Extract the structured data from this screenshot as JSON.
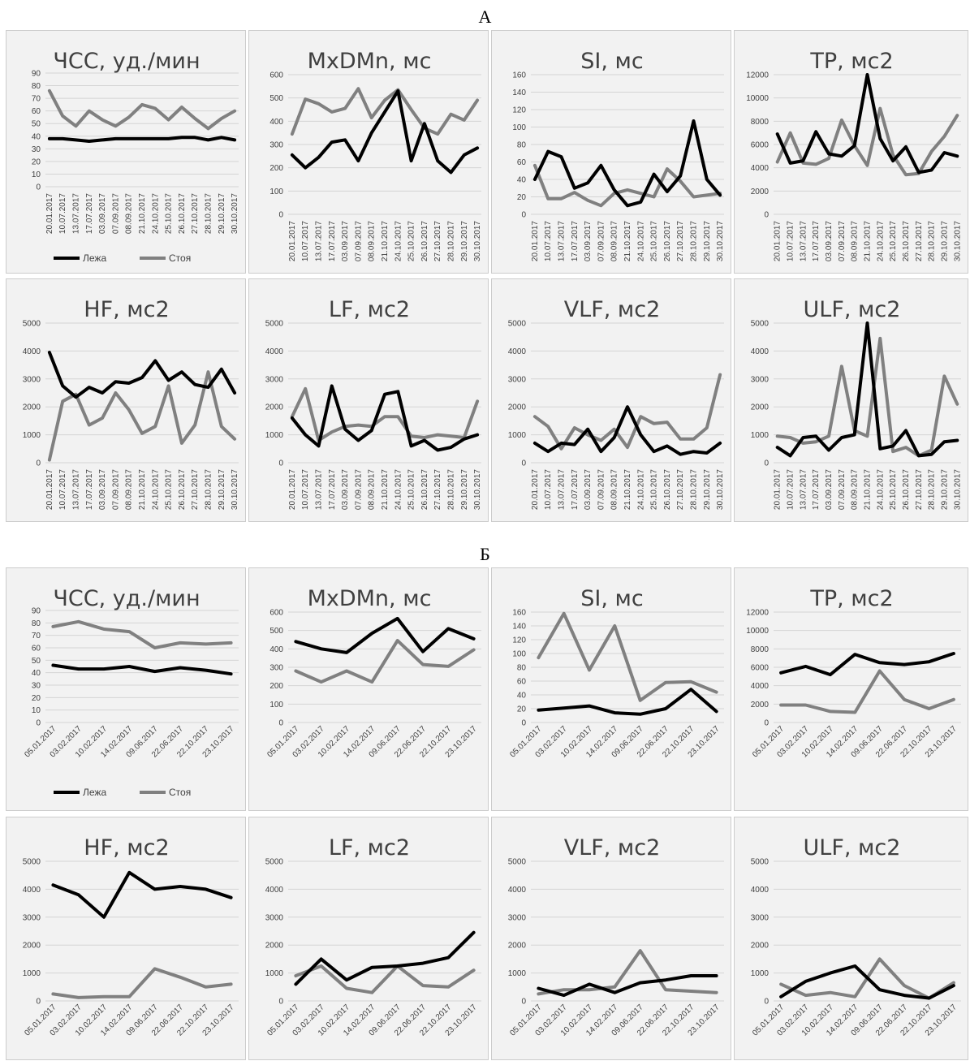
{
  "figure": {
    "label_a": "А",
    "label_b": "Б"
  },
  "legend": {
    "lying": "Лежа",
    "standing": "Стоя"
  },
  "colors": {
    "lying": "#000000",
    "standing": "#808080",
    "grid": "#d4d4d4",
    "panel_bg": "#f2f2f2"
  },
  "chart_data": [
    {
      "group": "А",
      "type": "line",
      "title": "ЧСС, уд./мин",
      "ylim": [
        0,
        90
      ],
      "yticks": [
        0,
        10,
        20,
        30,
        40,
        50,
        60,
        70,
        80,
        90
      ],
      "legend": true,
      "categories": [
        "20.01.2017",
        "10.07.2017",
        "13.07.2017",
        "17.07.2017",
        "03.09.2017",
        "07.09.2017",
        "08.09.2017",
        "21.10.2017",
        "24.10.2017",
        "25.10.2017",
        "26.10.2017",
        "27.10.2017",
        "28.10.2017",
        "29.10.2017",
        "30.10.2017"
      ],
      "series": [
        {
          "name": "Лежа",
          "values": [
            38,
            38,
            37,
            36,
            37,
            38,
            38,
            38,
            38,
            38,
            39,
            39,
            37,
            39,
            37
          ]
        },
        {
          "name": "Стоя",
          "values": [
            76,
            56,
            48,
            60,
            53,
            48,
            55,
            65,
            62,
            53,
            63,
            54,
            46,
            54,
            60
          ]
        }
      ]
    },
    {
      "group": "А",
      "type": "line",
      "title": "MxDMn, мс",
      "ylim": [
        0,
        600
      ],
      "yticks": [
        0,
        100,
        200,
        300,
        400,
        500,
        600
      ],
      "categories": [
        "20.01.2017",
        "10.07.2017",
        "13.07.2017",
        "17.07.2017",
        "03.09.2017",
        "07.09.2017",
        "08.09.2017",
        "21.10.2017",
        "24.10.2017",
        "25.10.2017",
        "26.10.2017",
        "27.10.2017",
        "28.10.2017",
        "29.10.2017",
        "30.10.2017"
      ],
      "series": [
        {
          "name": "Лежа",
          "values": [
            255,
            200,
            245,
            310,
            320,
            230,
            350,
            440,
            530,
            230,
            390,
            230,
            180,
            255,
            285
          ]
        },
        {
          "name": "Стоя",
          "values": [
            345,
            495,
            475,
            440,
            455,
            540,
            415,
            490,
            535,
            450,
            370,
            345,
            430,
            405,
            490
          ]
        }
      ]
    },
    {
      "group": "А",
      "type": "line",
      "title": "SI, мс",
      "ylim": [
        0,
        160
      ],
      "yticks": [
        0,
        20,
        40,
        60,
        80,
        100,
        120,
        140,
        160
      ],
      "categories": [
        "20.01.2017",
        "10.07.2017",
        "13.07.2017",
        "17.07.2017",
        "03.09.2017",
        "07.09.2017",
        "08.09.2017",
        "21.10.2017",
        "24.10.2017",
        "25.10.2017",
        "26.10.2017",
        "27.10.2017",
        "28.10.2017",
        "29.10.2017",
        "30.10.2017"
      ],
      "series": [
        {
          "name": "Лежа",
          "values": [
            40,
            72,
            66,
            30,
            36,
            56,
            28,
            10,
            14,
            46,
            26,
            44,
            107,
            40,
            22
          ]
        },
        {
          "name": "Стоя",
          "values": [
            56,
            18,
            18,
            25,
            16,
            10,
            24,
            28,
            24,
            20,
            52,
            38,
            20,
            22,
            24
          ]
        }
      ]
    },
    {
      "group": "А",
      "type": "line",
      "title": "TP, мс2",
      "ylim": [
        0,
        12000
      ],
      "yticks": [
        0,
        2000,
        4000,
        6000,
        8000,
        10000,
        12000
      ],
      "categories": [
        "20.01.2017",
        "10.07.2017",
        "13.07.2017",
        "17.07.2017",
        "03.09.2017",
        "07.09.2017",
        "08.09.2017",
        "21.10.2017",
        "24.10.2017",
        "25.10.2017",
        "26.10.2017",
        "27.10.2017",
        "28.10.2017",
        "29.10.2017",
        "30.10.2017"
      ],
      "series": [
        {
          "name": "Лежа",
          "values": [
            6900,
            4400,
            4600,
            7100,
            5200,
            5000,
            5900,
            12000,
            6500,
            4600,
            5800,
            3600,
            3800,
            5300,
            5000
          ]
        },
        {
          "name": "Стоя",
          "values": [
            4500,
            7000,
            4400,
            4300,
            4800,
            8100,
            5900,
            4200,
            9100,
            5100,
            3400,
            3500,
            5400,
            6700,
            8500
          ]
        }
      ]
    },
    {
      "group": "А",
      "type": "line",
      "title": "HF, мс2",
      "ylim": [
        0,
        5000
      ],
      "yticks": [
        0,
        1000,
        2000,
        3000,
        4000,
        5000
      ],
      "categories": [
        "20.01.2017",
        "10.07.2017",
        "13.07.2017",
        "17.07.2017",
        "03.09.2017",
        "07.09.2017",
        "08.09.2017",
        "21.10.2017",
        "24.10.2017",
        "25.10.2017",
        "26.10.2017",
        "27.10.2017",
        "28.10.2017",
        "29.10.2017",
        "30.10.2017"
      ],
      "series": [
        {
          "name": "Лежа",
          "values": [
            3950,
            2750,
            2350,
            2700,
            2500,
            2900,
            2850,
            3050,
            3650,
            2950,
            3250,
            2800,
            2700,
            3350,
            2500
          ]
        },
        {
          "name": "Стоя",
          "values": [
            100,
            2200,
            2450,
            1350,
            1600,
            2500,
            1900,
            1050,
            1300,
            2750,
            700,
            1350,
            3250,
            1300,
            850
          ]
        }
      ]
    },
    {
      "group": "А",
      "type": "line",
      "title": "LF, мс2",
      "ylim": [
        0,
        5000
      ],
      "yticks": [
        0,
        1000,
        2000,
        3000,
        4000,
        5000
      ],
      "categories": [
        "20.01.2017",
        "10.07.2017",
        "13.07.2017",
        "17.07.2017",
        "03.09.2017",
        "07.09.2017",
        "08.09.2017",
        "21.10.2017",
        "24.10.2017",
        "25.10.2017",
        "26.10.2017",
        "27.10.2017",
        "28.10.2017",
        "29.10.2017",
        "30.10.2017"
      ],
      "series": [
        {
          "name": "Лежа",
          "values": [
            1600,
            1000,
            600,
            2750,
            1200,
            800,
            1150,
            2450,
            2550,
            600,
            800,
            450,
            550,
            850,
            1000
          ]
        },
        {
          "name": "Стоя",
          "values": [
            1650,
            2650,
            800,
            1100,
            1300,
            1350,
            1300,
            1650,
            1650,
            950,
            900,
            1000,
            950,
            900,
            2200
          ]
        }
      ]
    },
    {
      "group": "А",
      "type": "line",
      "title": "VLF, мс2",
      "ylim": [
        0,
        5000
      ],
      "yticks": [
        0,
        1000,
        2000,
        3000,
        4000,
        5000
      ],
      "categories": [
        "20.01.2017",
        "10.07.2017",
        "13.07.2017",
        "17.07.2017",
        "03.09.2017",
        "07.09.2017",
        "08.09.2017",
        "21.10.2017",
        "24.10.2017",
        "25.10.2017",
        "26.10.2017",
        "27.10.2017",
        "28.10.2017",
        "29.10.2017",
        "30.10.2017"
      ],
      "series": [
        {
          "name": "Лежа",
          "values": [
            700,
            400,
            700,
            650,
            1200,
            400,
            900,
            2000,
            1000,
            400,
            600,
            300,
            400,
            350,
            700
          ]
        },
        {
          "name": "Стоя",
          "values": [
            1650,
            1300,
            500,
            1250,
            1000,
            800,
            1200,
            550,
            1650,
            1400,
            1450,
            850,
            850,
            1250,
            3150
          ]
        }
      ]
    },
    {
      "group": "А",
      "type": "line",
      "title": "ULF, мс2",
      "ylim": [
        0,
        5000
      ],
      "yticks": [
        0,
        1000,
        2000,
        3000,
        4000,
        5000
      ],
      "categories": [
        "20.01.2017",
        "10.07.2017",
        "13.07.2017",
        "17.07.2017",
        "03.09.2017",
        "07.09.2017",
        "08.09.2017",
        "21.10.2017",
        "24.10.2017",
        "25.10.2017",
        "26.10.2017",
        "27.10.2017",
        "28.10.2017",
        "29.10.2017",
        "30.10.2017"
      ],
      "series": [
        {
          "name": "Лежа",
          "values": [
            550,
            250,
            900,
            950,
            450,
            900,
            1000,
            5000,
            500,
            600,
            1150,
            250,
            300,
            750,
            800
          ]
        },
        {
          "name": "Стоя",
          "values": [
            950,
            900,
            700,
            750,
            950,
            3450,
            1150,
            950,
            4450,
            400,
            550,
            250,
            450,
            3100,
            2100
          ]
        }
      ]
    },
    {
      "group": "Б",
      "type": "line",
      "title": "ЧСС, уд./мин",
      "ylim": [
        0,
        90
      ],
      "yticks": [
        0,
        10,
        20,
        30,
        40,
        50,
        60,
        70,
        80,
        90
      ],
      "legend": true,
      "categories": [
        "05.01.2017",
        "03.02.2017",
        "10.02.2017",
        "14.02.2017",
        "09.06.2017",
        "22.06.2017",
        "22.10.2017",
        "23.10.2017"
      ],
      "series": [
        {
          "name": "Лежа",
          "values": [
            46,
            43,
            43,
            45,
            41,
            44,
            42,
            39
          ]
        },
        {
          "name": "Стоя",
          "values": [
            77,
            81,
            75,
            73,
            60,
            64,
            63,
            64
          ]
        }
      ]
    },
    {
      "group": "Б",
      "type": "line",
      "title": "MxDMn, мс",
      "ylim": [
        0,
        600
      ],
      "yticks": [
        0,
        100,
        200,
        300,
        400,
        500,
        600
      ],
      "categories": [
        "05.01.2017",
        "03.02.2017",
        "10.02.2017",
        "14.02.2017",
        "09.06.2017",
        "22.06.2017",
        "22.10.2017",
        "23.10.2017"
      ],
      "series": [
        {
          "name": "Лежа",
          "values": [
            440,
            400,
            380,
            485,
            565,
            385,
            510,
            455
          ]
        },
        {
          "name": "Стоя",
          "values": [
            280,
            220,
            280,
            220,
            445,
            315,
            305,
            395
          ]
        }
      ]
    },
    {
      "group": "Б",
      "type": "line",
      "title": "SI, мс",
      "ylim": [
        0,
        160
      ],
      "yticks": [
        0,
        20,
        40,
        60,
        80,
        100,
        120,
        140,
        160
      ],
      "categories": [
        "05.01.2017",
        "03.02.2017",
        "10.02.2017",
        "14.02.2017",
        "09.06.2017",
        "22.06.2017",
        "22.10.2017",
        "23.10.2017"
      ],
      "series": [
        {
          "name": "Лежа",
          "values": [
            18,
            21,
            24,
            14,
            12,
            20,
            48,
            16
          ]
        },
        {
          "name": "Стоя",
          "values": [
            94,
            158,
            76,
            140,
            32,
            58,
            59,
            44
          ]
        }
      ]
    },
    {
      "group": "Б",
      "type": "line",
      "title": "TP, мс2",
      "ylim": [
        0,
        12000
      ],
      "yticks": [
        0,
        2000,
        4000,
        6000,
        8000,
        10000,
        12000
      ],
      "categories": [
        "05.01.2017",
        "03.02.2017",
        "10.02.2017",
        "14.02.2017",
        "09.06.2017",
        "22.06.2017",
        "22.10.2017",
        "23.10.2017"
      ],
      "series": [
        {
          "name": "Лежа",
          "values": [
            5400,
            6100,
            5200,
            7400,
            6500,
            6300,
            6600,
            7500
          ]
        },
        {
          "name": "Стоя",
          "values": [
            1900,
            1900,
            1200,
            1100,
            5600,
            2500,
            1500,
            2500
          ]
        }
      ]
    },
    {
      "group": "Б",
      "type": "line",
      "title": "HF, мс2",
      "ylim": [
        0,
        5000
      ],
      "yticks": [
        0,
        1000,
        2000,
        3000,
        4000,
        5000
      ],
      "categories": [
        "05.01.2017",
        "03.02.2017",
        "10.02.2017",
        "14.02.2017",
        "09.06.2017",
        "22.06.2017",
        "22.10.2017",
        "23.10.2017"
      ],
      "series": [
        {
          "name": "Лежа",
          "values": [
            4150,
            3800,
            3000,
            4600,
            4000,
            4100,
            4000,
            3700
          ]
        },
        {
          "name": "Стоя",
          "values": [
            250,
            120,
            150,
            150,
            1150,
            850,
            500,
            600
          ]
        }
      ]
    },
    {
      "group": "Б",
      "type": "line",
      "title": "LF, мс2",
      "ylim": [
        0,
        5000
      ],
      "yticks": [
        0,
        1000,
        2000,
        3000,
        4000,
        5000
      ],
      "categories": [
        "05.01.2017",
        "03.02.2017",
        "10.02.2017",
        "14.02.2017",
        "09.06.2017",
        "22.06.2017",
        "22.10.2017",
        "23.10.2017"
      ],
      "series": [
        {
          "name": "Лежа",
          "values": [
            600,
            1500,
            750,
            1200,
            1250,
            1350,
            1550,
            2450
          ]
        },
        {
          "name": "Стоя",
          "values": [
            900,
            1250,
            450,
            300,
            1250,
            550,
            500,
            1100
          ]
        }
      ]
    },
    {
      "group": "Б",
      "type": "line",
      "title": "VLF, мс2",
      "ylim": [
        0,
        5000
      ],
      "yticks": [
        0,
        1000,
        2000,
        3000,
        4000,
        5000
      ],
      "categories": [
        "05.01.2017",
        "03.02.2017",
        "10.02.2017",
        "14.02.2017",
        "09.06.2017",
        "22.06.2017",
        "22.10.2017",
        "23.10.2017"
      ],
      "series": [
        {
          "name": "Лежа",
          "values": [
            450,
            200,
            600,
            300,
            650,
            750,
            900,
            900
          ]
        },
        {
          "name": "Стоя",
          "values": [
            250,
            400,
            400,
            500,
            1800,
            400,
            350,
            300
          ]
        }
      ]
    },
    {
      "group": "Б",
      "type": "line",
      "title": "ULF, мс2",
      "ylim": [
        0,
        5000
      ],
      "yticks": [
        0,
        1000,
        2000,
        3000,
        4000,
        5000
      ],
      "categories": [
        "05.01.2017",
        "03.02.2017",
        "10.02.2017",
        "14.02.2017",
        "09.06.2017",
        "22.06.2017",
        "22.10.2017",
        "23.10.2017"
      ],
      "series": [
        {
          "name": "Лежа",
          "values": [
            150,
            700,
            1000,
            1250,
            400,
            200,
            100,
            550
          ]
        },
        {
          "name": "Стоя",
          "values": [
            600,
            200,
            300,
            150,
            1500,
            550,
            100,
            650
          ]
        }
      ]
    }
  ]
}
